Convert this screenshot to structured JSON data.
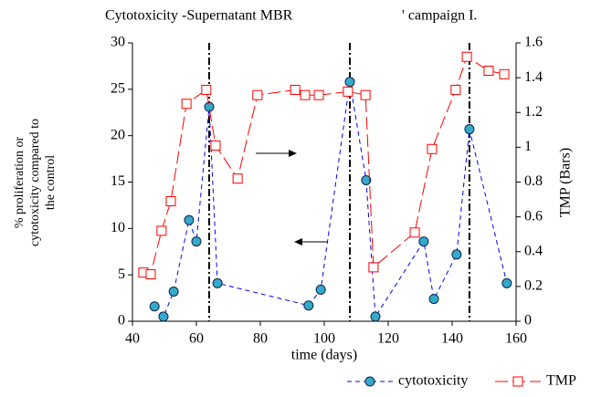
{
  "chart_data": {
    "type": "line",
    "title": "Cytotoxicity -Supernatant MBR",
    "title_tail": "' campaign I.",
    "x_label": "time (days)",
    "y_label": [
      "% proliferation or",
      "cytotoxicity compared to",
      "the control"
    ],
    "y2_label": "TMP (Bars)",
    "xlim": [
      40,
      160
    ],
    "xticks": [
      40,
      60,
      80,
      100,
      120,
      140,
      160
    ],
    "ylim": [
      0,
      30
    ],
    "yticks": [
      0,
      5,
      10,
      15,
      20,
      25,
      30
    ],
    "y2lim": [
      0,
      1.6
    ],
    "y2ticks": [
      0,
      0.2,
      0.4,
      0.6,
      0.8,
      1,
      1.2,
      1.4,
      1.6
    ],
    "vlines": [
      64,
      108,
      145.4
    ],
    "series": [
      {
        "name": "cytotoxicity",
        "color": "#0000ff",
        "marker_color": "#33aacc",
        "x": [
          46.9,
          49.7,
          52.9,
          57.7,
          60,
          64,
          66.6,
          95.1,
          98.9,
          108,
          113.1,
          116,
          131.1,
          134.3,
          141.4,
          145.4,
          157.1
        ],
        "values": [
          1.6,
          0.5,
          3.2,
          10.9,
          8.6,
          23.1,
          4.1,
          1.7,
          3.4,
          25.8,
          15.2,
          0.5,
          8.6,
          2.4,
          7.2,
          20.7,
          4.1
        ]
      },
      {
        "name": "TMP",
        "color": "#ff0000",
        "axis": "y2",
        "x": [
          43.4,
          45.7,
          49.1,
          52,
          56.9,
          63.1,
          66,
          72.9,
          79.1,
          90.9,
          94,
          98.3,
          107.4,
          112.9,
          115.4,
          128.3,
          133.7,
          141.1,
          144.6,
          151.4,
          156.3
        ],
        "values": [
          0.28,
          0.27,
          0.52,
          0.69,
          1.25,
          1.33,
          1.01,
          0.82,
          1.3,
          1.33,
          1.3,
          1.3,
          1.32,
          1.3,
          0.31,
          0.51,
          0.99,
          1.33,
          1.52,
          1.44,
          1.42
        ]
      }
    ]
  }
}
